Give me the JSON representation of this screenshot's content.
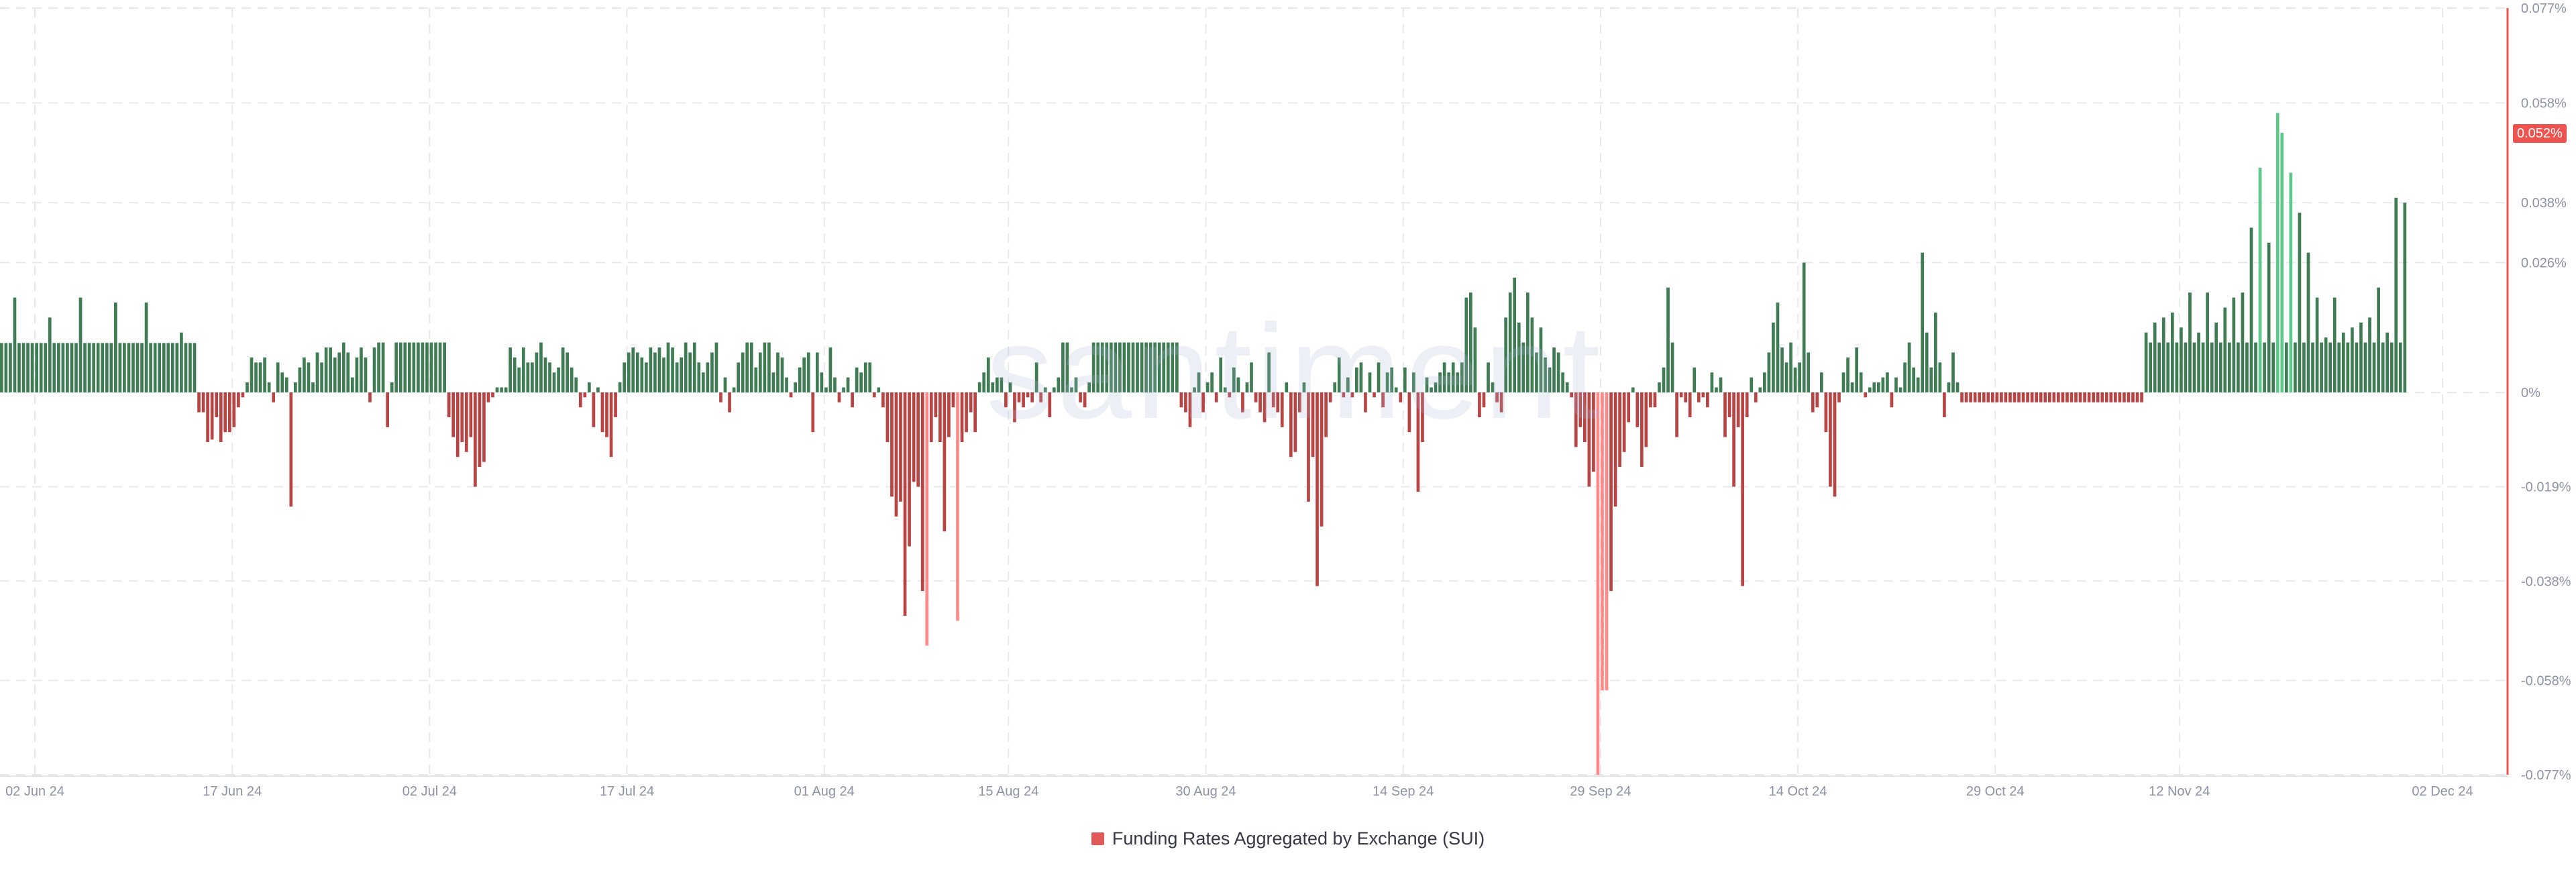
{
  "chart_data": {
    "type": "bar",
    "legend": {
      "label": "Funding Rates Aggregated by Exchange (SUI)",
      "placement": "bottom-center"
    },
    "watermark": "santiment",
    "current_value_label": "0.052%",
    "y_axis": {
      "position": "right",
      "ylim": [
        -0.077,
        0.077
      ],
      "tick_labels": [
        "0.077%",
        "0.058%",
        "0.038%",
        "0.026%",
        "0%",
        "-0.019%",
        "-0.038%",
        "-0.058%",
        "-0.077%"
      ],
      "tick_values": [
        0.077,
        0.058,
        0.038,
        0.026,
        0,
        -0.019,
        -0.038,
        -0.058,
        -0.077
      ]
    },
    "x_axis": {
      "tick_labels": [
        "02 Jun 24",
        "17 Jun 24",
        "02 Jul 24",
        "17 Jul 24",
        "01 Aug 24",
        "15 Aug 24",
        "30 Aug 24",
        "14 Sep 24",
        "29 Sep 24",
        "14 Oct 24",
        "29 Oct 24",
        "12 Nov 24",
        "02 Dec 24"
      ],
      "tick_dates": [
        "2024-06-02",
        "2024-06-17",
        "2024-07-02",
        "2024-07-17",
        "2024-08-01",
        "2024-08-15",
        "2024-08-30",
        "2024-09-14",
        "2024-09-29",
        "2024-10-14",
        "2024-10-29",
        "2024-11-12",
        "2024-12-02"
      ]
    },
    "grid": true,
    "colors": {
      "positive": "#3f7c54",
      "positive_bright": "#5cc98a",
      "negative": "#b84444",
      "negative_bright": "#ff8a8a",
      "axis_accent": "#ef5350"
    },
    "series": [
      {
        "name": "Funding Rates Aggregated by Exchange (SUI)",
        "periods_per_day": 3,
        "start": "2024-06-02",
        "segments": [
          {
            "from": "2024-06-02",
            "to": "2024-06-17",
            "mode": "flat",
            "value": 0.0099,
            "spikes": [
              0.019,
              0.015,
              0.019,
              0.018,
              0.018,
              0.012
            ]
          },
          {
            "from": "2024-06-17",
            "to": "2024-06-21",
            "mode": "mixed",
            "values": [
              -0.004,
              -0.01,
              -0.0095,
              -0.005,
              -0.01,
              -0.008,
              -0.007,
              -0.003,
              -0.001,
              0.002
            ]
          },
          {
            "from": "2024-06-21",
            "to": "2024-07-02",
            "mode": "mixed",
            "values": [
              0.007,
              0.006,
              0.006,
              0.007,
              0.002,
              -0.002,
              0.006,
              0.004,
              0.003,
              -0.023,
              0.002,
              0.005,
              0.007,
              0.006,
              0.002,
              0.008,
              0.006,
              0.009,
              0.009,
              0.007,
              0.008,
              0.01,
              0.008,
              0.003,
              0.007,
              0.009,
              0.007,
              -0.002,
              0.009,
              0.01,
              0.01,
              -0.007,
              0.002
            ]
          },
          {
            "from": "2024-07-02",
            "to": "2024-07-06",
            "mode": "flat",
            "value": 0.01
          },
          {
            "from": "2024-07-06",
            "to": "2024-07-17",
            "mode": "mixed",
            "values": [
              -0.005,
              -0.009,
              -0.013,
              -0.01,
              -0.012,
              -0.009,
              -0.019,
              -0.015,
              -0.014,
              -0.002,
              -0.001,
              0.001,
              0.001,
              0.001,
              0.009,
              0.007,
              0.005,
              0.009,
              0.006,
              0.006,
              0.008,
              0.01,
              0.007,
              0.006,
              0.004,
              0.005,
              0.009,
              0.008,
              0.005,
              0.003,
              -0.003,
              -0.001,
              0.002
            ]
          },
          {
            "from": "2024-07-17",
            "to": "2024-08-01",
            "mode": "mixed",
            "values": [
              -0.007,
              0.001,
              -0.008,
              -0.009,
              -0.013,
              -0.005,
              0.002,
              0.006,
              0.008,
              0.009,
              0.008,
              0.007,
              0.006,
              0.009,
              0.008,
              0.009,
              0.007,
              0.01,
              0.009,
              0.006,
              0.007,
              0.01,
              0.008,
              0.01,
              0.006,
              0.004,
              0.006,
              0.008,
              0.01,
              -0.002,
              0.003,
              -0.004,
              0.001,
              0.006,
              0.008,
              0.01,
              0.01,
              0.005,
              0.008,
              0.01,
              0.01,
              0.004,
              0.008,
              0.007,
              0.003
            ]
          },
          {
            "from": "2024-08-01",
            "to": "2024-08-15",
            "mode": "mixed",
            "values": [
              -0.001,
              0.002,
              0.005,
              0.007,
              0.008,
              -0.008,
              0.008,
              0.004,
              0.001,
              0.009,
              0.003,
              -0.002,
              0.001,
              0.003,
              0.001,
              -0.003,
              0.005,
              0.004,
              0.006,
              0.006,
              -0.001,
              0.001,
              -0.003,
              -0.01,
              -0.021,
              -0.025,
              -0.022,
              -0.045,
              -0.031,
              -0.038,
              -0.018,
              -0.019,
              -0.04,
              -0.051,
              -0.01,
              -0.005,
              -0.01,
              -0.028,
              -0.009,
              -0.003,
              -0.046,
              -0.01,
              -0.008,
              -0.004,
              -0.012
            ]
          },
          {
            "from": "2024-08-15",
            "to": "2024-08-30",
            "mode": "mixed",
            "values": [
              -0.008,
              0.002,
              0.004,
              0.007,
              0.002,
              0.003,
              0.003,
              -0.003,
              0.002,
              -0.006,
              -0.002,
              -0.003,
              -0.001,
              -0.002,
              0.006,
              -0.002,
              0.001,
              -0.005,
              0.001,
              0.003,
              0.01,
              0.01,
              0.001,
              0.003,
              -0.002,
              -0.003,
              0.002,
              0.01,
              0.01,
              0.01,
              0.01,
              0.01,
              0.01,
              0.01,
              0.01,
              0.01,
              0.01,
              0.01,
              0.01,
              0.01,
              0.01,
              0.01,
              0.01,
              0.01,
              0.01
            ]
          },
          {
            "from": "2024-08-30",
            "to": "2024-09-14",
            "mode": "mixed",
            "values": [
              0.01,
              0.01,
              -0.003,
              -0.004,
              -0.007,
              0.001,
              0.004,
              -0.004,
              0.002,
              0.004,
              -0.002,
              0.007,
              0.001,
              -0.001,
              0.005,
              0.003,
              -0.004,
              0.002,
              0.006,
              -0.002,
              -0.004,
              -0.006,
              0.008,
              -0.003,
              -0.004,
              -0.007,
              0.002,
              -0.013,
              -0.012,
              -0.004,
              0.002,
              -0.022,
              -0.013,
              -0.039,
              -0.027,
              -0.009,
              -0.002,
              0.002,
              0.007,
              -0.001,
              0.003,
              -0.001,
              0.005,
              0.006,
              -0.004
            ]
          },
          {
            "from": "2024-09-14",
            "to": "2024-09-29",
            "mode": "mixed",
            "values": [
              0.004,
              -0.001,
              0.006,
              -0.003,
              0.004,
              0.005,
              0.001,
              -0.002,
              0.005,
              -0.008,
              0.004,
              -0.02,
              -0.01,
              0.003,
              0.001,
              0.002,
              0.004,
              0.006,
              0.004,
              0.006,
              0.004,
              0.006,
              0.019,
              0.02,
              0.013,
              -0.005,
              -0.003,
              0.006,
              0.002,
              -0.002,
              -0.004,
              0.015,
              0.02,
              0.023,
              0.014,
              0.01,
              0.02,
              0.015,
              0.008,
              0.013,
              0.007,
              0.005,
              0.009,
              0.008,
              0.004
            ]
          },
          {
            "from": "2024-09-29",
            "to": "2024-10-14",
            "mode": "mixed",
            "values": [
              0.002,
              -0.001,
              -0.011,
              -0.007,
              -0.01,
              -0.019,
              -0.016,
              -0.077,
              -0.06,
              -0.06,
              -0.04,
              -0.023,
              -0.015,
              -0.012,
              -0.006,
              0.001,
              -0.007,
              -0.015,
              -0.011,
              -0.003,
              -0.003,
              0.002,
              0.005,
              0.021,
              0.01,
              -0.009,
              -0.001,
              -0.002,
              -0.005,
              0.005,
              -0.002,
              -0.001,
              -0.003,
              0.004,
              0.001,
              0.003,
              -0.009,
              -0.005,
              -0.019,
              -0.007,
              -0.039,
              -0.005,
              0.003,
              -0.002,
              0.001
            ]
          },
          {
            "from": "2024-10-14",
            "to": "2024-10-29",
            "mode": "mixed",
            "values": [
              0.004,
              0.008,
              0.014,
              0.018,
              0.009,
              0.006,
              0.01,
              0.005,
              0.006,
              0.026,
              0.008,
              -0.004,
              -0.003,
              0.004,
              -0.008,
              -0.019,
              -0.021,
              -0.002,
              0.004,
              0.007,
              0.002,
              0.009,
              0.004,
              -0.001,
              0.001,
              0.002,
              0.002,
              0.003,
              0.004,
              -0.003,
              0.003,
              0.001,
              0.006,
              0.01,
              0.005,
              0.003,
              0.028,
              0.012,
              0.005,
              0.016,
              0.006,
              -0.005,
              0.002,
              0.008,
              0.002
            ]
          },
          {
            "from": "2024-10-29",
            "to": "2024-11-12",
            "mode": "flat",
            "value": -0.002
          },
          {
            "from": "2024-11-12",
            "to": "2024-12-02",
            "mode": "flat",
            "value": 0.01,
            "spikes": [
              0.012,
              0.014,
              0.015,
              0.016,
              0.013,
              0.02,
              0.012,
              0.02,
              0.014,
              0.017,
              0.019,
              0.02,
              0.033,
              0.045,
              0.03,
              0.056,
              0.052,
              0.044,
              0.036,
              0.028,
              0.019,
              0.011,
              0.019,
              0.012,
              0.013,
              0.014,
              0.015,
              0.021,
              0.012,
              0.039,
              0.038
            ]
          }
        ]
      }
    ]
  }
}
